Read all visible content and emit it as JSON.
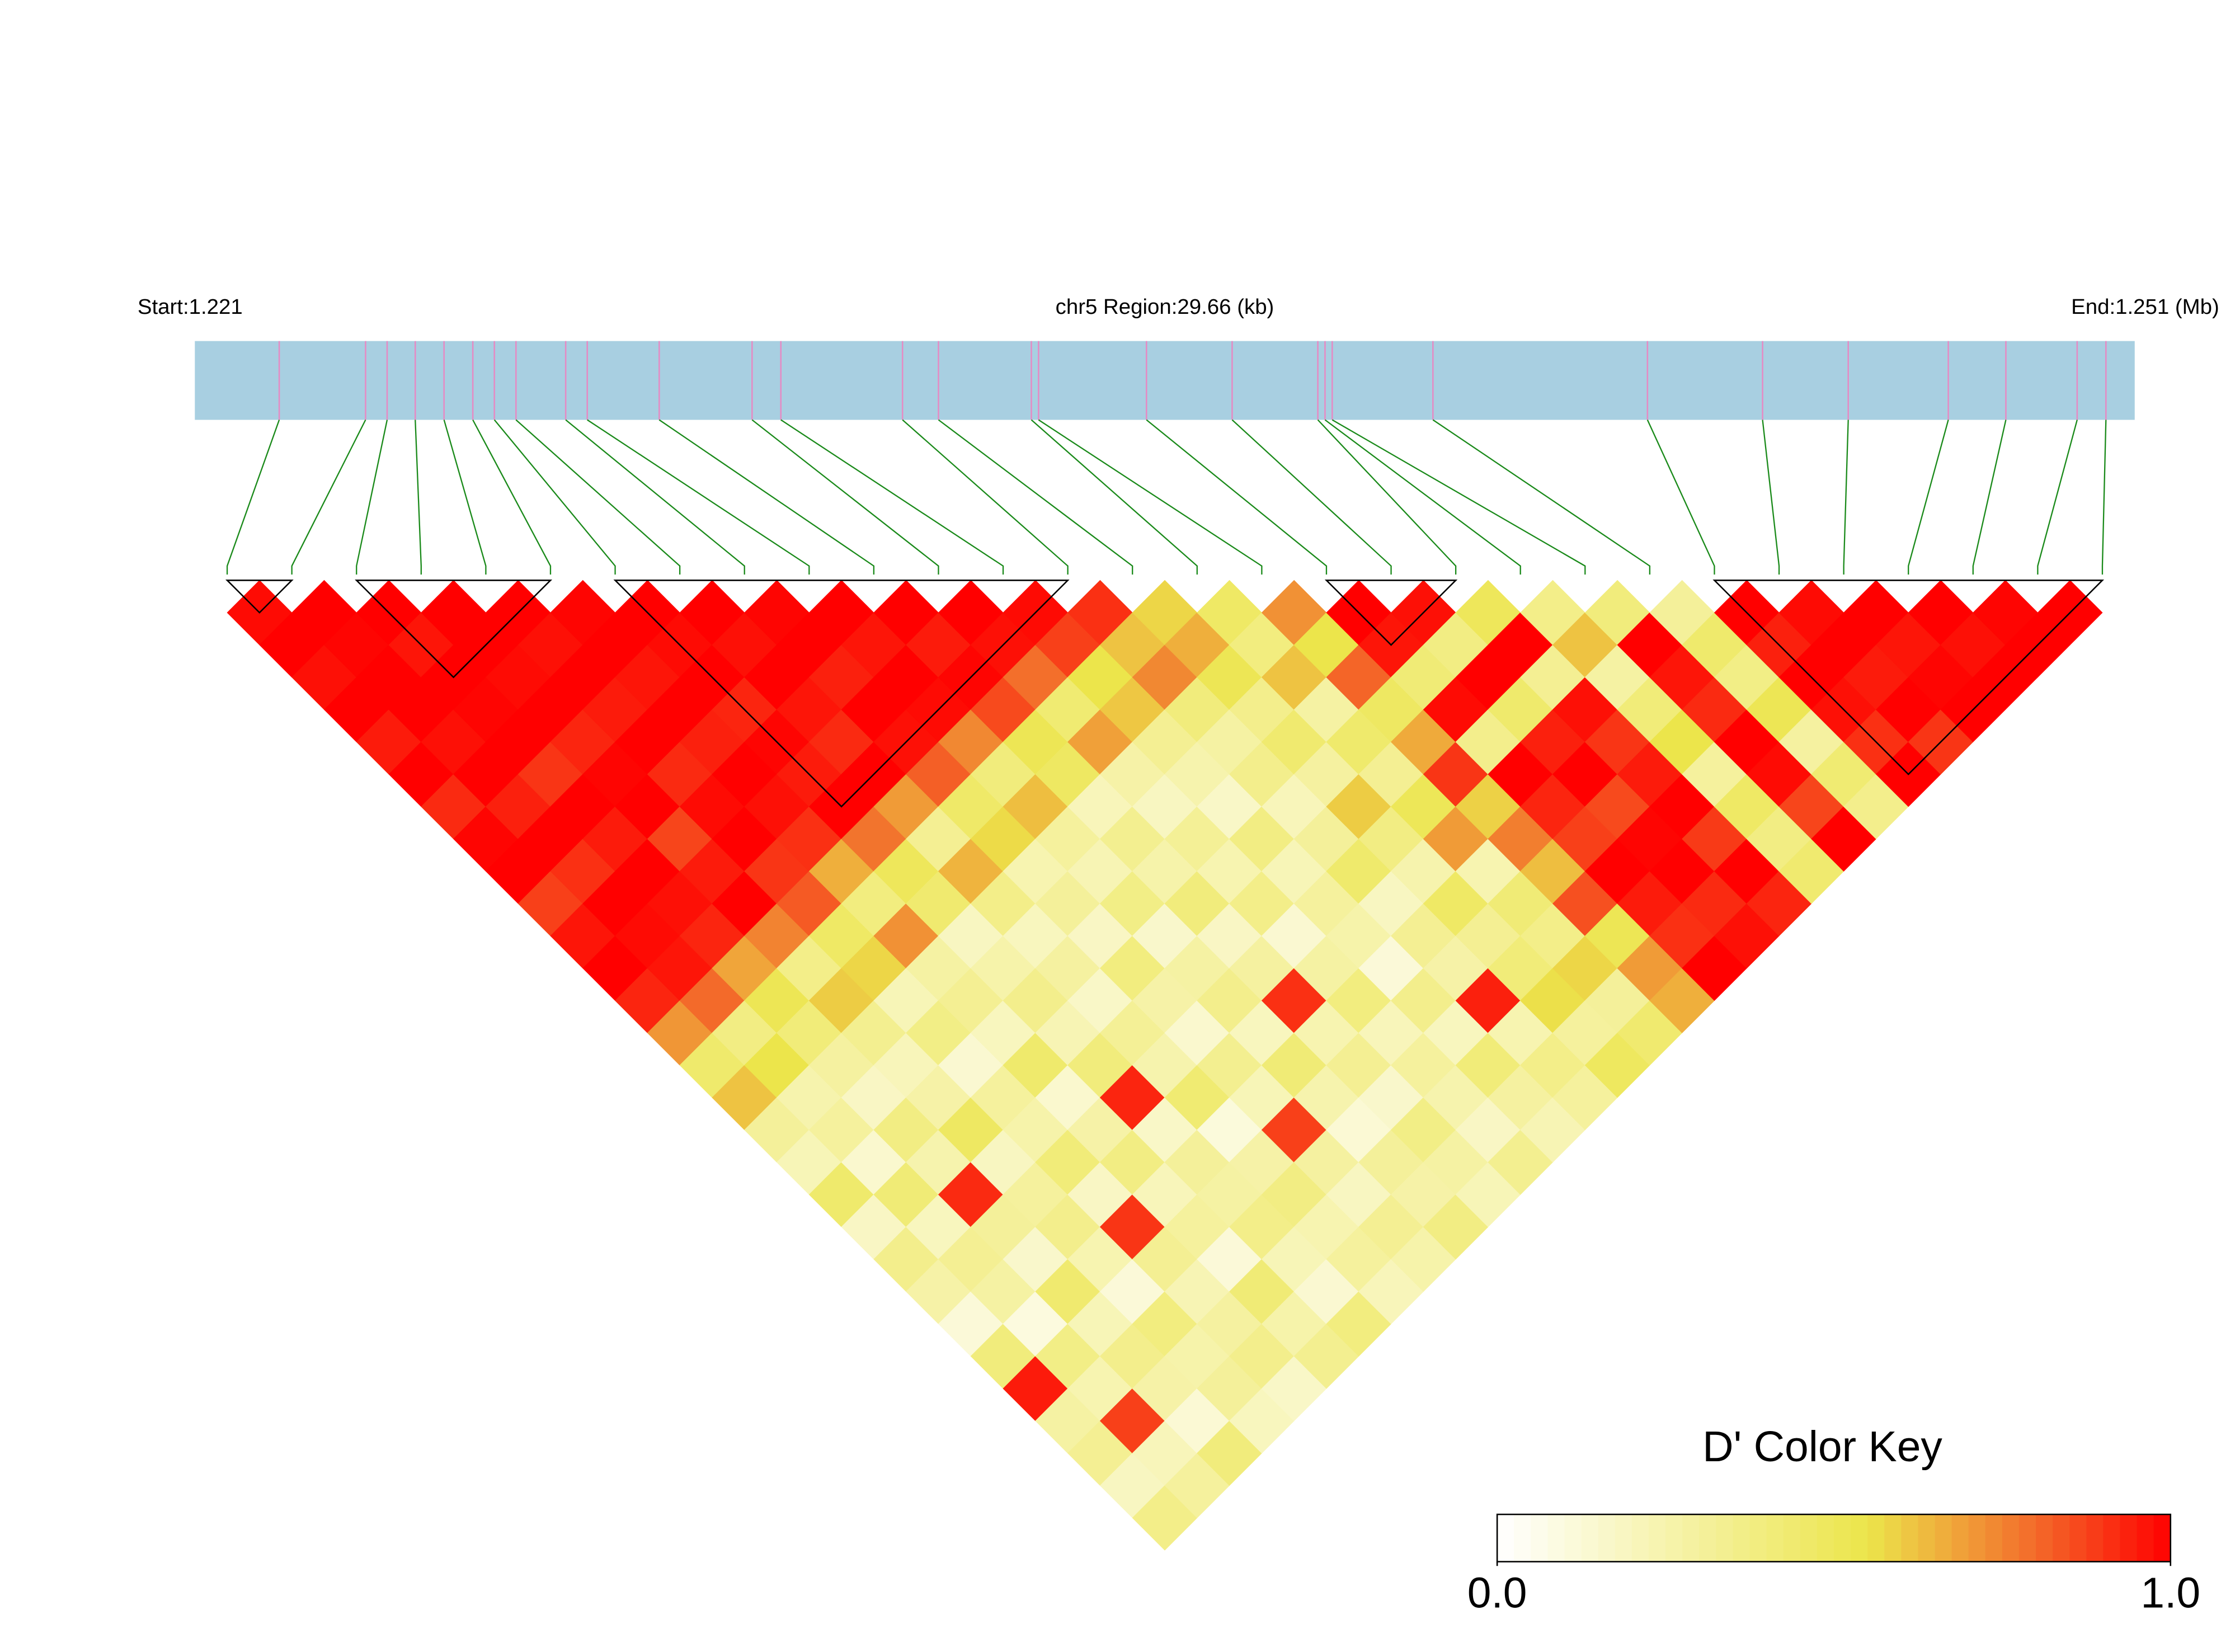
{
  "chart_data": {
    "type": "ldheatmap",
    "start_label": "Start:1.221",
    "region_label": "chr5 Region:29.66 (kb)",
    "end_label": "End:1.251 (Mb)",
    "key_title": "D' Color Key",
    "xlim": [
      1.22115,
      1.25081
    ],
    "snp_positions": [
      1.22244,
      1.22376,
      1.22409,
      1.22452,
      1.22496,
      1.2254,
      1.22573,
      1.22606,
      1.22682,
      1.22715,
      1.22825,
      1.22967,
      1.23011,
      1.23197,
      1.23252,
      1.23394,
      1.23405,
      1.2357,
      1.23701,
      1.23832,
      1.23843,
      1.23854,
      1.24008,
      1.24336,
      1.24512,
      1.24643,
      1.24796,
      1.24884,
      1.24993,
      1.25037
    ],
    "dprime": [
      [
        0.98,
        1,
        0.97,
        1,
        0.95,
        1,
        0.92,
        0.99,
        1,
        0.88,
        0.96,
        1,
        0.93,
        0.71,
        0.45,
        0.62,
        0.31,
        0.22,
        0.45,
        0.18,
        0.35,
        0.27,
        0.12,
        0.4,
        0.95,
        0.28,
        0.33,
        0.19,
        0.36
      ],
      [
        1,
        0.99,
        1,
        1,
        0.97,
        1,
        0.94,
        1,
        0.91,
        1,
        0.98,
        0.96,
        0.8,
        0.38,
        0.55,
        0.25,
        0.3,
        0.15,
        0.42,
        0.2,
        0.33,
        0.28,
        0.1,
        0.37,
        0.24,
        0.88,
        0.21,
        0.3
      ],
      [
        1,
        0.96,
        1,
        0.99,
        1,
        0.9,
        1,
        0.95,
        1,
        0.97,
        0.93,
        0.68,
        0.52,
        0.41,
        0.29,
        0.18,
        0.38,
        0.25,
        0.92,
        0.31,
        0.16,
        0.44,
        0.22,
        0.35,
        0.27,
        0.13,
        0.4
      ],
      [
        1,
        1,
        0.98,
        1,
        0.93,
        0.99,
        1,
        0.87,
        0.95,
        1,
        0.75,
        0.36,
        0.6,
        0.34,
        0.21,
        0.27,
        0.48,
        0.19,
        0.3,
        0.35,
        0.24,
        0.12,
        0.39,
        0.26,
        0.31,
        0.2
      ],
      [
        1,
        0.97,
        1,
        0.95,
        1,
        0.92,
        0.98,
        1,
        0.9,
        0.83,
        0.47,
        0.58,
        0.22,
        0.37,
        0.14,
        0.3,
        0.26,
        0.41,
        0.18,
        0.9,
        0.33,
        0.23,
        0.29,
        0.35,
        0.17
      ],
      [
        0.99,
        1,
        0.96,
        1,
        0.94,
        1,
        0.97,
        0.91,
        0.66,
        0.39,
        0.72,
        0.28,
        0.33,
        0.2,
        0.45,
        0.15,
        0.27,
        0.38,
        0.21,
        0.3,
        0.12,
        0.42,
        0.26,
        0.34
      ],
      [
        1,
        0.98,
        1,
        0.93,
        0.99,
        0.95,
        1,
        0.78,
        0.5,
        0.44,
        0.19,
        0.26,
        0.35,
        0.23,
        0.4,
        0.93,
        0.17,
        0.31,
        0.28,
        0.36,
        0.22,
        0.14,
        0.39
      ],
      [
        1,
        0.97,
        1,
        0.96,
        0.92,
        1,
        0.7,
        0.33,
        0.65,
        0.36,
        0.2,
        0.29,
        0.17,
        0.32,
        0.25,
        0.43,
        0.11,
        0.27,
        0.38,
        0.24,
        0.3,
        0.21
      ],
      [
        0.99,
        1,
        0.94,
        1,
        0.97,
        0.82,
        0.46,
        0.57,
        0.24,
        0.31,
        0.18,
        0.39,
        0.27,
        0.15,
        0.34,
        0.22,
        0.88,
        0.29,
        0.19,
        0.33,
        0.26
      ],
      [
        1,
        0.96,
        1,
        0.98,
        0.74,
        0.4,
        0.63,
        0.3,
        0.23,
        0.37,
        0.16,
        0.28,
        0.35,
        0.2,
        0.42,
        0.25,
        0.13,
        0.31,
        0.27,
        0.38
      ],
      [
        1,
        0.95,
        0.99,
        0.86,
        0.52,
        0.48,
        0.21,
        0.34,
        0.26,
        0.4,
        0.18,
        0.29,
        0.91,
        0.24,
        0.33,
        0.16,
        0.37,
        0.28,
        0.22
      ],
      [
        1,
        0.97,
        0.79,
        0.43,
        0.69,
        0.27,
        0.19,
        0.32,
        0.24,
        0.36,
        0.14,
        0.28,
        0.39,
        0.21,
        0.3,
        0.25,
        0.18,
        0.34
      ],
      [
        0.98,
        0.88,
        0.55,
        0.61,
        0.33,
        0.25,
        0.17,
        0.38,
        0.22,
        0.3,
        0.26,
        0.12,
        0.35,
        0.2,
        0.41,
        0.29,
        0.23
      ],
      [
        0.91,
        0.62,
        0.74,
        0.4,
        0.28,
        0.35,
        0.21,
        0.31,
        0.45,
        0.19,
        0.33,
        0.27,
        0.94,
        0.24,
        0.36,
        0.3
      ],
      [
        0.58,
        0.66,
        0.52,
        0.35,
        0.44,
        0.29,
        0.6,
        0.38,
        0.25,
        0.47,
        0.33,
        0.41,
        0.56,
        0.3,
        0.49
      ],
      [
        0.47,
        0.39,
        0.62,
        0.28,
        0.45,
        0.33,
        0.51,
        0.7,
        0.24,
        0.42,
        0.36,
        0.58,
        0.31,
        0.44
      ],
      [
        0.72,
        0.55,
        0.81,
        0.48,
        0.67,
        0.9,
        0.59,
        0.76,
        0.63,
        0.85,
        0.52,
        0.7,
        0.66
      ],
      [
        1,
        0.96,
        0.42,
        0.98,
        0.35,
        1,
        0.93,
        0.88,
        1,
        0.95,
        0.91,
        1
      ],
      [
        0.97,
        0.38,
        1,
        0.45,
        0.94,
        1,
        0.86,
        0.99,
        1,
        0.92,
        0.97
      ],
      [
        0.5,
        1,
        0.33,
        0.97,
        0.9,
        0.95,
        1,
        0.89,
        1,
        0.93
      ],
      [
        0.36,
        0.62,
        0.28,
        0.41,
        0.55,
        0.3,
        0.47,
        0.38,
        0.44
      ],
      [
        0.4,
        1,
        0.96,
        0.92,
        1,
        0.98,
        0.87,
        1
      ],
      [
        0.31,
        0.45,
        0.37,
        0.52,
        0.29,
        0.43,
        0.35
      ],
      [
        1,
        0.94,
        1,
        0.97,
        0.91,
        1
      ],
      [
        0.98,
        1,
        0.95,
        1,
        0.9
      ],
      [
        1,
        0.96,
        0.99,
        1
      ],
      [
        1,
        0.97,
        1
      ],
      [
        0.99,
        1
      ],
      [
        1
      ]
    ],
    "blocks": [
      [
        0,
        1
      ],
      [
        2,
        5
      ],
      [
        6,
        13
      ],
      [
        17,
        19
      ],
      [
        23,
        29
      ]
    ],
    "colorscale": [
      [
        0,
        "#ffffff"
      ],
      [
        0.55,
        "#ece54b"
      ],
      [
        0.8,
        "#f36a2a"
      ],
      [
        1,
        "#ff0000"
      ]
    ],
    "colorkey": {
      "lim": [
        0,
        1
      ],
      "ticks": [
        {
          "value": 0,
          "label": "0.0"
        },
        {
          "value": 1,
          "label": "1.0"
        }
      ]
    },
    "bar_color": "#a8cfe1",
    "snp_color": "#e58bc4",
    "connector_color": "#1a8a1a"
  }
}
